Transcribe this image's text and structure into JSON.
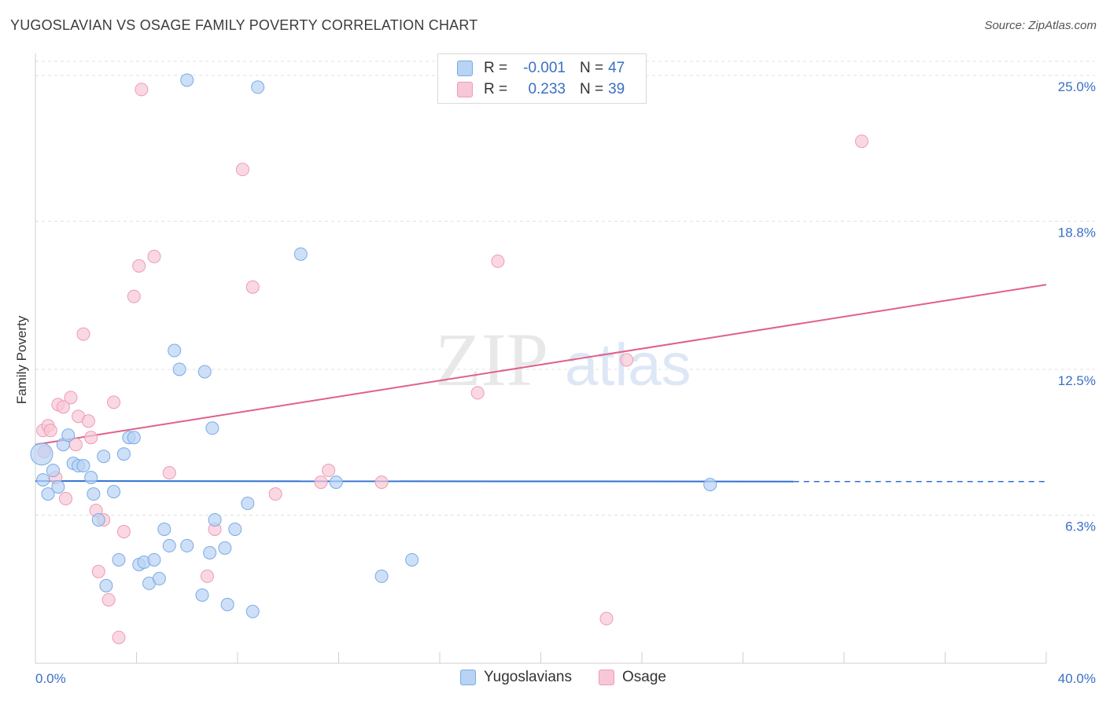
{
  "title": "YUGOSLAVIAN VS OSAGE FAMILY POVERTY CORRELATION CHART",
  "source": "Source: ZipAtlas.com",
  "watermark": {
    "zip": "ZIP",
    "atlas": "atlas"
  },
  "legend": {
    "rows": [
      {
        "r_label": "R =",
        "r_value": "-0.001",
        "n_label": "N =",
        "n_value": "47"
      },
      {
        "r_label": "R =",
        "r_value": "0.233",
        "n_label": "N =",
        "n_value": "39"
      }
    ]
  },
  "bottom_legend": [
    "Yugoslavians",
    "Osage"
  ],
  "colors": {
    "blue_fill": "#b8d3f3",
    "blue_stroke": "#7aaae6",
    "blue_line": "#2f6fd0",
    "pink_fill": "#f8c7d6",
    "pink_stroke": "#ee9ab6",
    "pink_line": "#e0608c",
    "axis_text": "#3a6fc6",
    "grid": "#e0e0e0"
  },
  "chart_data": {
    "type": "scatter",
    "title": "YUGOSLAVIAN VS OSAGE FAMILY POVERTY CORRELATION CHART",
    "xlabel": "",
    "ylabel": "Family Poverty",
    "xlim": [
      0,
      40
    ],
    "ylim": [
      0,
      25.6
    ],
    "x_tick_labels": [
      "0.0%",
      "40.0%"
    ],
    "y_ticks": [
      6.3,
      12.5,
      18.8,
      25.0
    ],
    "y_tick_labels": [
      "6.3%",
      "12.5%",
      "18.8%",
      "25.0%"
    ],
    "series": [
      {
        "name": "Yugoslavians",
        "r": -0.001,
        "n": 47,
        "trend": {
          "x": [
            0,
            30,
            40
          ],
          "y": [
            7.75,
            7.73,
            7.73
          ],
          "solid_until": 30
        },
        "points": [
          [
            0.25,
            8.9
          ],
          [
            0.3,
            7.8
          ],
          [
            0.5,
            7.2
          ],
          [
            0.7,
            8.2
          ],
          [
            0.9,
            7.5
          ],
          [
            1.1,
            9.3
          ],
          [
            1.3,
            9.7
          ],
          [
            1.5,
            8.5
          ],
          [
            1.7,
            8.4
          ],
          [
            1.9,
            8.4
          ],
          [
            2.2,
            7.9
          ],
          [
            2.3,
            7.2
          ],
          [
            2.5,
            6.1
          ],
          [
            2.7,
            8.8
          ],
          [
            2.8,
            3.3
          ],
          [
            3.1,
            7.3
          ],
          [
            3.3,
            4.4
          ],
          [
            3.5,
            8.9
          ],
          [
            3.7,
            9.6
          ],
          [
            3.9,
            9.6
          ],
          [
            4.1,
            4.2
          ],
          [
            4.3,
            4.3
          ],
          [
            4.5,
            3.4
          ],
          [
            4.7,
            4.4
          ],
          [
            4.9,
            3.6
          ],
          [
            5.1,
            5.7
          ],
          [
            5.3,
            5.0
          ],
          [
            5.5,
            13.3
          ],
          [
            5.7,
            12.5
          ],
          [
            6.0,
            5.0
          ],
          [
            6.0,
            24.8
          ],
          [
            6.6,
            2.9
          ],
          [
            6.7,
            12.4
          ],
          [
            6.9,
            4.7
          ],
          [
            7.0,
            10.0
          ],
          [
            7.1,
            6.1
          ],
          [
            7.5,
            4.9
          ],
          [
            7.6,
            2.5
          ],
          [
            7.9,
            5.7
          ],
          [
            8.4,
            6.8
          ],
          [
            8.6,
            2.2
          ],
          [
            8.8,
            24.5
          ],
          [
            10.5,
            17.4
          ],
          [
            11.9,
            7.7
          ],
          [
            13.7,
            3.7
          ],
          [
            14.9,
            4.4
          ],
          [
            26.7,
            7.6
          ]
        ]
      },
      {
        "name": "Osage",
        "r": 0.233,
        "n": 39,
        "trend": {
          "x": [
            0,
            40
          ],
          "y": [
            9.3,
            16.1
          ],
          "solid_until": 40
        },
        "points": [
          [
            0.3,
            9.9
          ],
          [
            0.35,
            9.0
          ],
          [
            0.5,
            10.1
          ],
          [
            0.6,
            9.9
          ],
          [
            0.8,
            7.9
          ],
          [
            0.9,
            11.0
          ],
          [
            1.1,
            10.9
          ],
          [
            1.2,
            7.0
          ],
          [
            1.4,
            11.3
          ],
          [
            1.6,
            9.3
          ],
          [
            1.7,
            10.5
          ],
          [
            1.9,
            14.0
          ],
          [
            2.1,
            10.3
          ],
          [
            2.2,
            9.6
          ],
          [
            2.4,
            6.5
          ],
          [
            2.5,
            3.9
          ],
          [
            2.7,
            6.1
          ],
          [
            2.9,
            2.7
          ],
          [
            3.1,
            11.1
          ],
          [
            3.3,
            1.1
          ],
          [
            3.5,
            5.6
          ],
          [
            3.9,
            15.6
          ],
          [
            4.1,
            16.9
          ],
          [
            4.2,
            24.4
          ],
          [
            4.7,
            17.3
          ],
          [
            5.3,
            8.1
          ],
          [
            6.8,
            3.7
          ],
          [
            7.1,
            5.7
          ],
          [
            8.2,
            21.0
          ],
          [
            8.6,
            16.0
          ],
          [
            9.5,
            7.2
          ],
          [
            11.3,
            7.7
          ],
          [
            11.6,
            8.2
          ],
          [
            13.7,
            7.7
          ],
          [
            17.5,
            11.5
          ],
          [
            18.3,
            17.1
          ],
          [
            22.6,
            1.9
          ],
          [
            23.4,
            12.9
          ],
          [
            32.7,
            22.2
          ]
        ]
      }
    ]
  }
}
